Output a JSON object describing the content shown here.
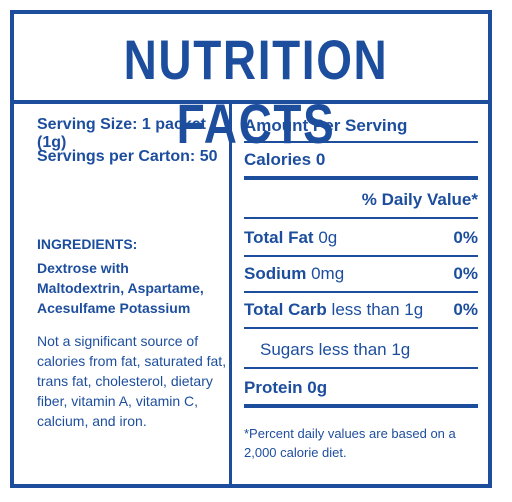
{
  "title": "NUTRITION FACTS",
  "serving": {
    "size_label": "Serving Size: 1 packet (1g)",
    "per_carton_label": "Servings per Carton: 50"
  },
  "ingredients": {
    "heading": "INGREDIENTS:",
    "text": "Dextrose with Maltodextrin, Aspartame, Acesulfame Potassium"
  },
  "note": "Not a significant source of calories from fat, saturated fat, trans fat, cholesterol, dietary fiber, vitamin A, vitamin C, calcium, and iron.",
  "panel": {
    "amount_per_serving": "Amount Per Serving",
    "calories_label": "Calories",
    "calories_value": "0",
    "daily_value_header": "% Daily Value*",
    "rows": [
      {
        "name": "Total Fat",
        "amount": "0g",
        "pct": "0%"
      },
      {
        "name": "Sodium",
        "amount": "0mg",
        "pct": "0%"
      },
      {
        "name": "Total Carb",
        "amount": "less than 1g",
        "pct": "0%"
      }
    ],
    "sugars": "Sugars less than 1g",
    "protein_label": "Protein",
    "protein_value": "0g",
    "footnote": "*Percent daily values are based on a 2,000 calorie diet."
  },
  "colors": {
    "brand_blue": "#1d4e9e",
    "background": "#ffffff"
  }
}
